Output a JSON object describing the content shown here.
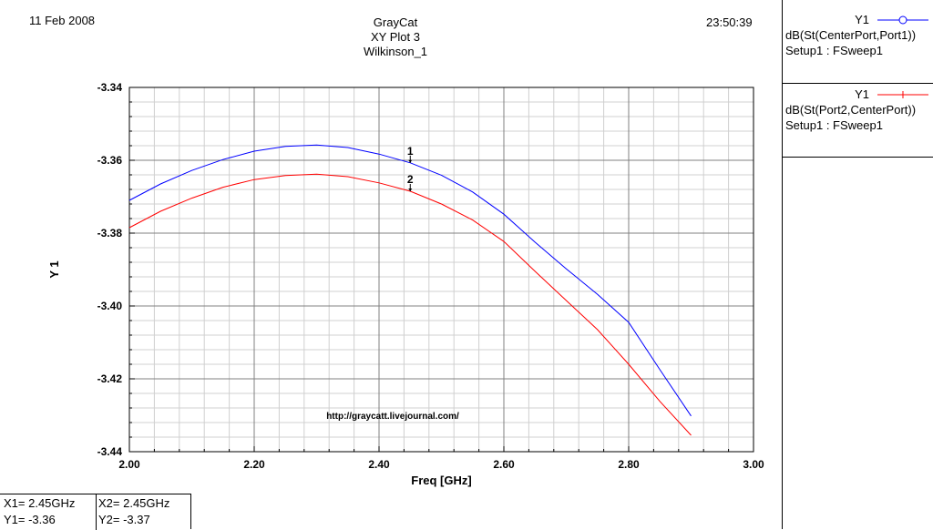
{
  "header": {
    "date": "11 Feb 2008",
    "time": "23:50:39",
    "title_lines": [
      "GrayCat",
      "XY Plot 3",
      "Wilkinson_1"
    ]
  },
  "legend": [
    {
      "name": "Y1",
      "expr": "dB(St(CenterPort,Port1))",
      "setup": "Setup1 : FSweep1",
      "color": "#0000ff",
      "marker": "circle"
    },
    {
      "name": "Y1",
      "expr": "dB(St(Port2,CenterPort))",
      "setup": "Setup1 : FSweep1",
      "color": "#ff0000",
      "marker": "plus"
    }
  ],
  "markers_table": {
    "x1": "X1= 2.45GHz",
    "y1": "Y1= -3.36",
    "x2": "X2= 2.45GHz",
    "y2": "Y2= -3.37"
  },
  "watermark": "http://graycatt.livejournal.com/",
  "chart_data": {
    "type": "line",
    "xlabel": "Freq [GHz]",
    "ylabel": "Y 1",
    "xlim": [
      2.0,
      3.0
    ],
    "ylim": [
      -3.44,
      -3.34
    ],
    "x_ticks": [
      "2.00",
      "2.20",
      "2.40",
      "2.60",
      "2.80",
      "3.00"
    ],
    "y_ticks": [
      "-3.34",
      "-3.36",
      "-3.38",
      "-3.40",
      "-3.42",
      "-3.44"
    ],
    "grid": true,
    "x": [
      2.0,
      2.05,
      2.1,
      2.15,
      2.2,
      2.25,
      2.3,
      2.35,
      2.4,
      2.45,
      2.5,
      2.55,
      2.6,
      2.65,
      2.7,
      2.75,
      2.8,
      2.85,
      2.9
    ],
    "series": [
      {
        "name": "dB(St(CenterPort,Port1))",
        "color": "#0000ff",
        "values": [
          -3.371,
          -3.3665,
          -3.3628,
          -3.3598,
          -3.3575,
          -3.3562,
          -3.3558,
          -3.3565,
          -3.3583,
          -3.3607,
          -3.3641,
          -3.3687,
          -3.3748,
          -3.3825,
          -3.3898,
          -3.3968,
          -3.4045,
          -3.4175,
          -3.4302
        ]
      },
      {
        "name": "dB(St(Port2,CenterPort))",
        "color": "#ff0000",
        "values": [
          -3.3785,
          -3.374,
          -3.3704,
          -3.3674,
          -3.3653,
          -3.3642,
          -3.3638,
          -3.3645,
          -3.3662,
          -3.3685,
          -3.372,
          -3.3764,
          -3.3823,
          -3.3905,
          -3.3985,
          -3.4065,
          -3.416,
          -3.4262,
          -3.4355
        ]
      }
    ],
    "markers": [
      {
        "label": "1",
        "x": 2.45,
        "y": -3.3607
      },
      {
        "label": "2",
        "x": 2.45,
        "y": -3.3685
      }
    ]
  }
}
